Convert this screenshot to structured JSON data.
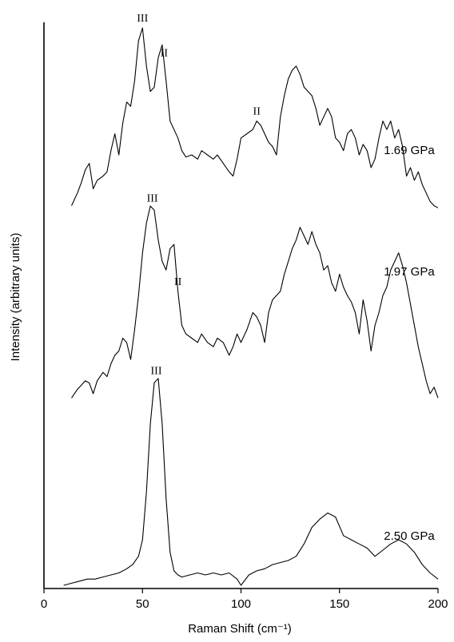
{
  "chart_data": {
    "type": "line",
    "xlabel": "Raman Shift (cm⁻¹)",
    "ylabel": "Intensity (arbitrary units)",
    "xlim": [
      0,
      200
    ],
    "xticks": [
      "0",
      "50",
      "100",
      "150",
      "200"
    ],
    "grid": false,
    "series": [
      {
        "name": "1.69 GPa",
        "x": [
          14,
          17,
          19,
          21,
          23,
          25,
          27,
          30,
          32,
          34,
          36,
          38,
          40,
          42,
          44,
          46,
          48,
          50,
          52,
          54,
          56,
          58,
          60,
          62,
          64,
          66,
          68,
          70,
          72,
          75,
          78,
          80,
          83,
          86,
          88,
          91,
          94,
          96,
          98,
          100,
          103,
          106,
          108,
          110,
          112,
          114,
          116,
          118,
          120,
          122,
          124,
          126,
          128,
          130,
          132,
          134,
          136,
          138,
          140,
          142,
          144,
          146,
          148,
          150,
          152,
          154,
          156,
          158,
          160,
          162,
          164,
          166,
          168,
          170,
          172,
          174,
          176,
          178,
          180,
          182,
          184,
          186,
          188,
          190,
          192,
          194,
          196,
          198,
          200
        ],
        "values": [
          0.16,
          0.22,
          0.27,
          0.33,
          0.36,
          0.24,
          0.28,
          0.3,
          0.32,
          0.42,
          0.5,
          0.4,
          0.55,
          0.65,
          0.63,
          0.75,
          0.94,
          1.0,
          0.82,
          0.7,
          0.72,
          0.86,
          0.92,
          0.75,
          0.56,
          0.52,
          0.48,
          0.42,
          0.39,
          0.4,
          0.38,
          0.42,
          0.4,
          0.38,
          0.4,
          0.36,
          0.32,
          0.3,
          0.38,
          0.48,
          0.5,
          0.52,
          0.56,
          0.54,
          0.5,
          0.46,
          0.44,
          0.4,
          0.58,
          0.68,
          0.76,
          0.8,
          0.82,
          0.78,
          0.72,
          0.7,
          0.68,
          0.62,
          0.54,
          0.58,
          0.62,
          0.58,
          0.48,
          0.46,
          0.42,
          0.5,
          0.52,
          0.48,
          0.4,
          0.45,
          0.42,
          0.34,
          0.38,
          0.48,
          0.56,
          0.52,
          0.56,
          0.48,
          0.52,
          0.44,
          0.3,
          0.34,
          0.28,
          0.32,
          0.26,
          0.22,
          0.18,
          0.16,
          0.15
        ]
      },
      {
        "name": "1.97 GPa",
        "x": [
          14,
          17,
          19,
          21,
          23,
          25,
          27,
          30,
          32,
          34,
          36,
          38,
          40,
          42,
          44,
          46,
          48,
          50,
          52,
          54,
          56,
          58,
          60,
          62,
          64,
          66,
          68,
          70,
          72,
          75,
          78,
          80,
          83,
          86,
          88,
          91,
          94,
          96,
          98,
          100,
          103,
          106,
          108,
          110,
          112,
          114,
          116,
          118,
          120,
          122,
          124,
          126,
          128,
          130,
          132,
          134,
          136,
          138,
          140,
          142,
          144,
          146,
          148,
          150,
          152,
          154,
          156,
          158,
          160,
          162,
          164,
          166,
          168,
          170,
          172,
          174,
          176,
          178,
          180,
          182,
          184,
          186,
          188,
          190,
          192,
          194,
          196,
          198,
          200
        ],
        "values": [
          0.1,
          0.14,
          0.16,
          0.18,
          0.17,
          0.12,
          0.18,
          0.22,
          0.2,
          0.26,
          0.3,
          0.32,
          0.38,
          0.36,
          0.28,
          0.42,
          0.58,
          0.78,
          0.92,
          1.0,
          0.98,
          0.84,
          0.74,
          0.7,
          0.8,
          0.82,
          0.6,
          0.44,
          0.4,
          0.38,
          0.36,
          0.4,
          0.36,
          0.34,
          0.38,
          0.36,
          0.3,
          0.34,
          0.4,
          0.36,
          0.42,
          0.5,
          0.48,
          0.44,
          0.36,
          0.5,
          0.56,
          0.58,
          0.6,
          0.68,
          0.74,
          0.8,
          0.84,
          0.9,
          0.86,
          0.82,
          0.88,
          0.82,
          0.78,
          0.7,
          0.72,
          0.64,
          0.6,
          0.68,
          0.62,
          0.58,
          0.55,
          0.5,
          0.4,
          0.56,
          0.46,
          0.32,
          0.44,
          0.5,
          0.58,
          0.62,
          0.7,
          0.74,
          0.78,
          0.72,
          0.64,
          0.54,
          0.44,
          0.34,
          0.26,
          0.18,
          0.12,
          0.15,
          0.1
        ]
      },
      {
        "name": "2.50 GPa",
        "x": [
          10,
          14,
          18,
          22,
          26,
          30,
          34,
          38,
          42,
          45,
          48,
          50,
          52,
          54,
          56,
          58,
          60,
          62,
          64,
          66,
          68,
          70,
          74,
          78,
          82,
          86,
          90,
          94,
          98,
          100,
          104,
          108,
          112,
          116,
          120,
          124,
          128,
          132,
          136,
          140,
          144,
          148,
          152,
          156,
          160,
          164,
          168,
          172,
          176,
          180,
          184,
          188,
          192,
          196,
          200
        ],
        "values": [
          0.0,
          0.01,
          0.02,
          0.03,
          0.03,
          0.04,
          0.05,
          0.06,
          0.08,
          0.1,
          0.14,
          0.22,
          0.45,
          0.78,
          0.98,
          1.0,
          0.78,
          0.42,
          0.16,
          0.07,
          0.05,
          0.04,
          0.05,
          0.06,
          0.05,
          0.06,
          0.05,
          0.06,
          0.03,
          0.0,
          0.05,
          0.07,
          0.08,
          0.1,
          0.11,
          0.12,
          0.14,
          0.2,
          0.28,
          0.32,
          0.35,
          0.33,
          0.24,
          0.22,
          0.2,
          0.18,
          0.14,
          0.17,
          0.2,
          0.22,
          0.2,
          0.16,
          0.1,
          0.06,
          0.03
        ]
      }
    ],
    "annotations": [
      {
        "text": "III",
        "series": 0,
        "x": 50
      },
      {
        "text": "II",
        "series": 0,
        "x": 61
      },
      {
        "text": "II",
        "series": 0,
        "x": 108
      },
      {
        "text": "III",
        "series": 1,
        "x": 55
      },
      {
        "text": "II",
        "series": 1,
        "x": 68
      },
      {
        "text": "III",
        "series": 2,
        "x": 57
      }
    ]
  }
}
